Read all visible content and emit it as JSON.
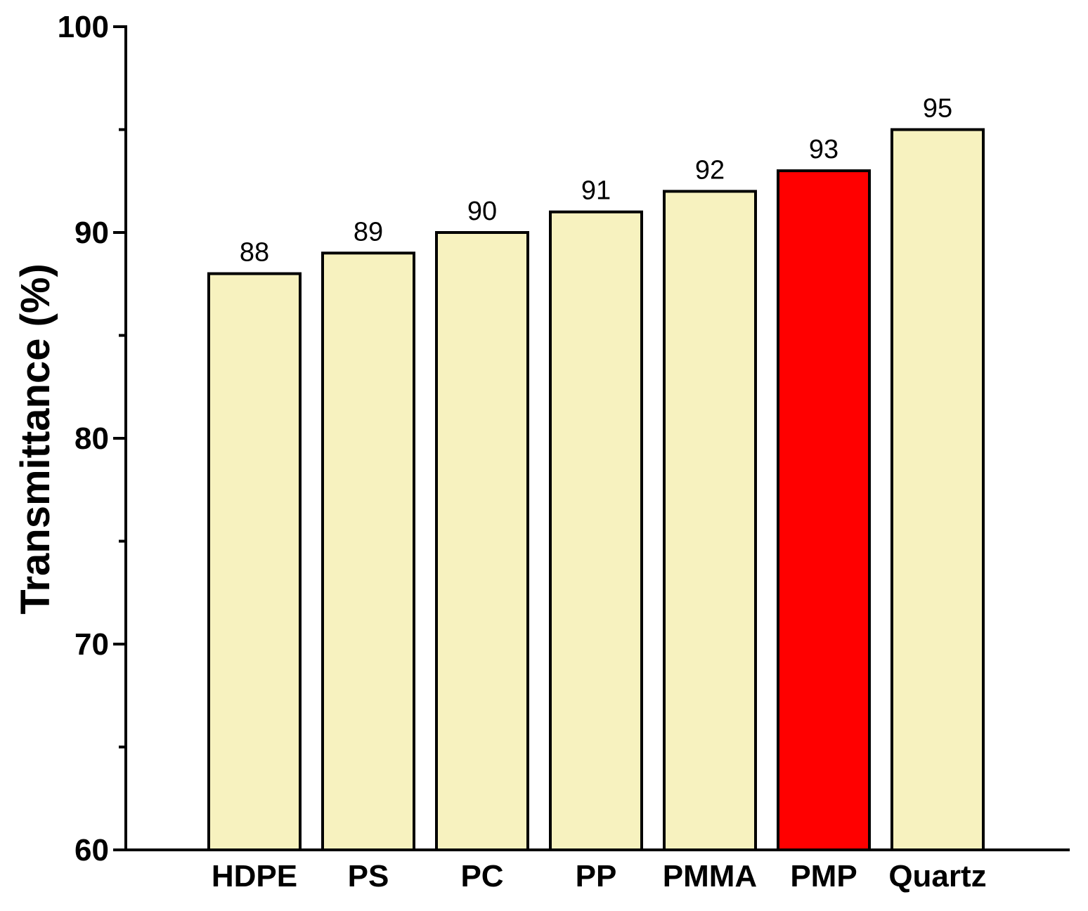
{
  "chart_data": {
    "type": "bar",
    "categories": [
      "HDPE",
      "PS",
      "PC",
      "PP",
      "PMMA",
      "PMP",
      "Quartz"
    ],
    "values": [
      88,
      89,
      90,
      91,
      92,
      93,
      95
    ],
    "value_labels": [
      "88",
      "89",
      "90",
      "91",
      "92",
      "93",
      "95"
    ],
    "ylabel": "Transmittance (%)",
    "ylim": [
      60,
      100
    ],
    "yticks": [
      60,
      70,
      80,
      90,
      100
    ],
    "ytick_labels": [
      "60",
      "70",
      "80",
      "90",
      "100"
    ],
    "grid": false,
    "colors": {
      "default_fill": "#f7f2bf",
      "highlight_fill": "#ff0000",
      "highlight_label": "#ff0000",
      "outline": "#000000"
    },
    "highlight_category": "PMP"
  }
}
